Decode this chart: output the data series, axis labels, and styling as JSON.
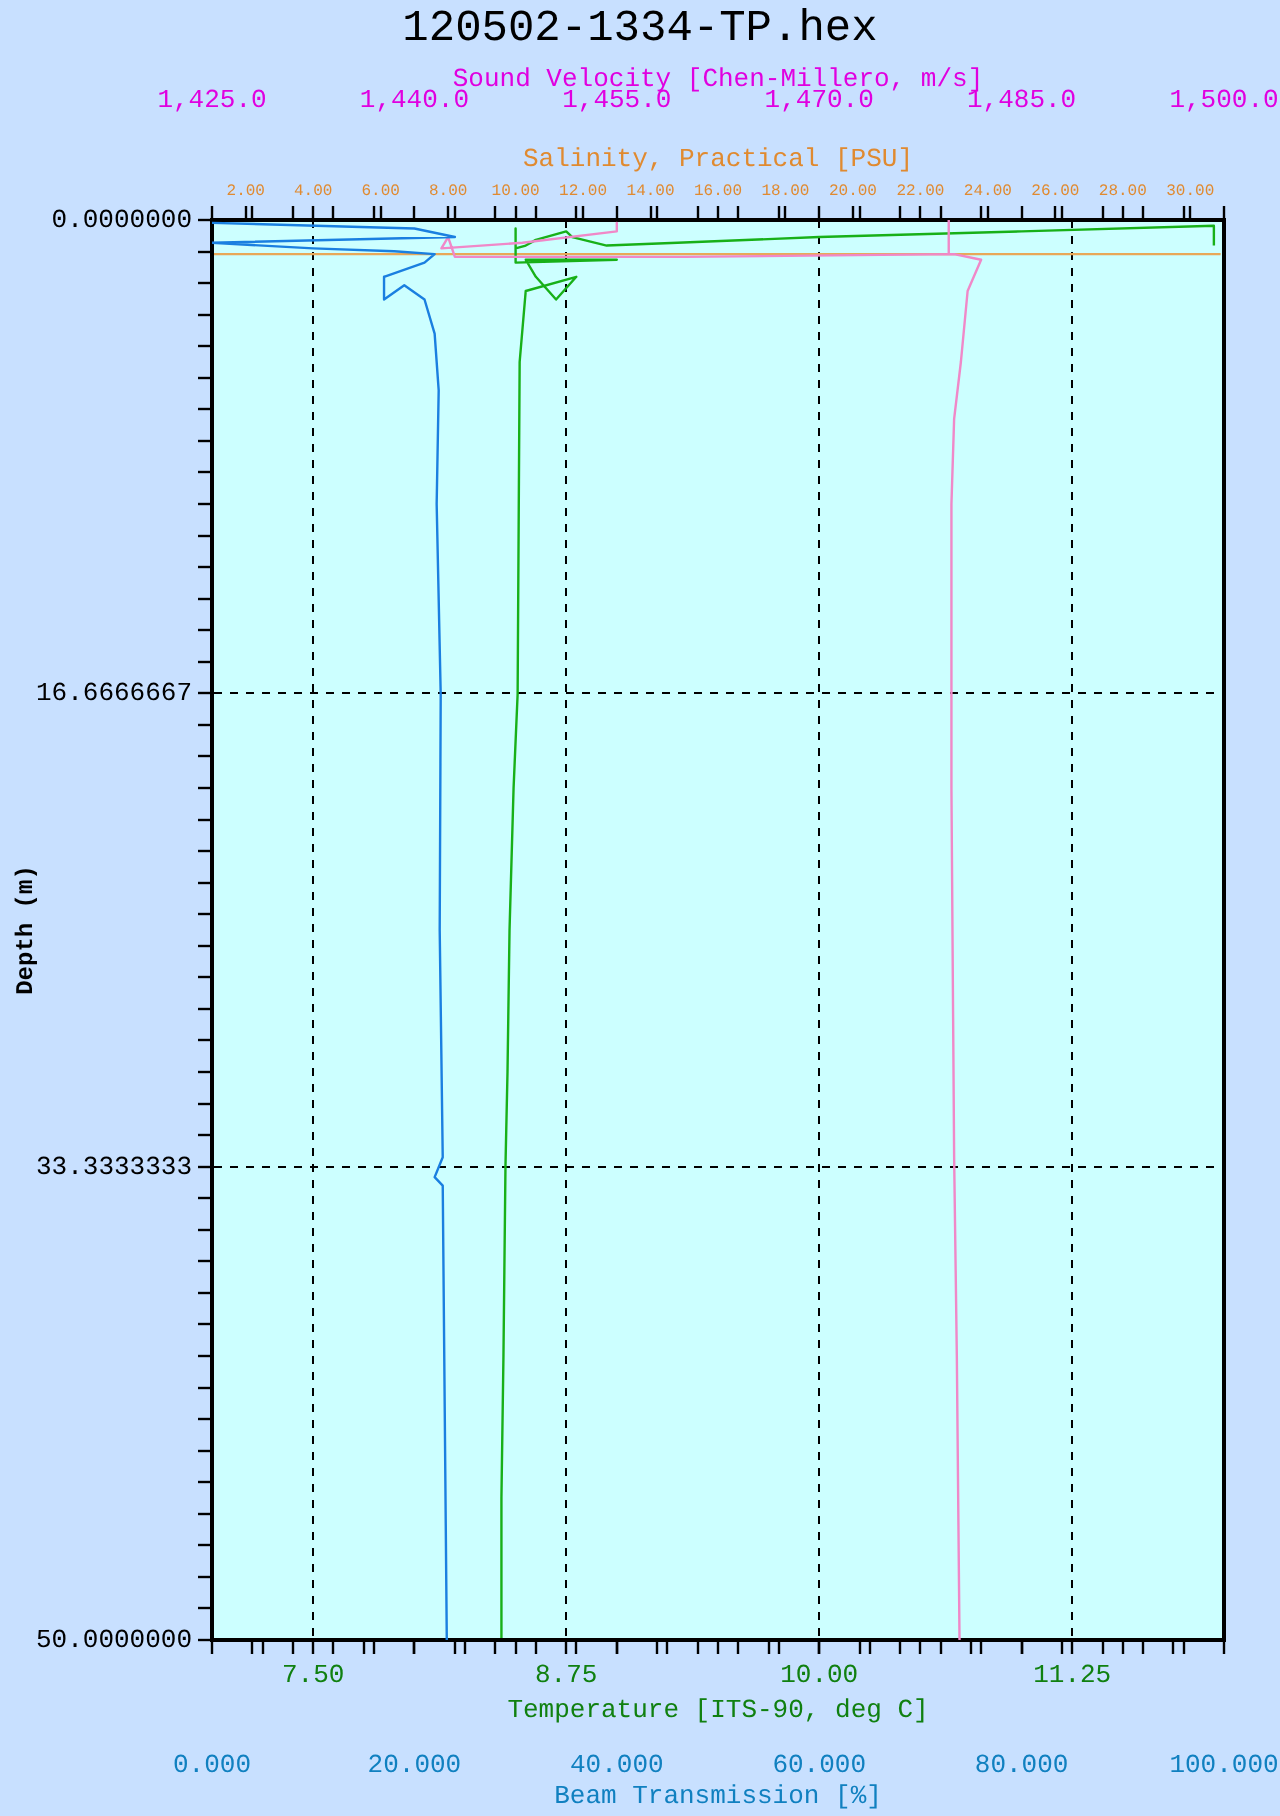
{
  "chart_data": [
    {
      "type": "line",
      "title": "120502-1334-TP.hex",
      "ylabel": "Depth (m)",
      "xlabel": "Temperature [ITS-90, deg C]",
      "x2label": "Salinity, Practical [PSU]",
      "ylim": [
        50,
        0
      ],
      "yticks": [
        {
          "value": 0,
          "label": "0.0000000"
        },
        {
          "value": 1.1111,
          "label": null
        },
        {
          "value": 2.2222,
          "label": null
        },
        {
          "value": 3.3333,
          "label": null
        },
        {
          "value": 4.4444,
          "label": null
        },
        {
          "value": 5.5556,
          "label": null
        },
        {
          "value": 6.6667,
          "label": null
        },
        {
          "value": 7.7778,
          "label": null
        },
        {
          "value": 8.8889,
          "label": null
        },
        {
          "value": 10,
          "label": null
        },
        {
          "value": 11.1111,
          "label": null
        },
        {
          "value": 12.2222,
          "label": null
        },
        {
          "value": 13.3333,
          "label": null
        },
        {
          "value": 14.4444,
          "label": null
        },
        {
          "value": 15.5556,
          "label": null
        },
        {
          "value": 16.6666667,
          "label": "16.6666667"
        },
        {
          "value": 17.7778,
          "label": null
        },
        {
          "value": 18.8889,
          "label": null
        },
        {
          "value": 20,
          "label": null
        },
        {
          "value": 21.1111,
          "label": null
        },
        {
          "value": 22.2222,
          "label": null
        },
        {
          "value": 23.3333,
          "label": null
        },
        {
          "value": 24.4444,
          "label": null
        },
        {
          "value": 25.5556,
          "label": null
        },
        {
          "value": 26.6667,
          "label": null
        },
        {
          "value": 27.7778,
          "label": null
        },
        {
          "value": 28.8889,
          "label": null
        },
        {
          "value": 30,
          "label": null
        },
        {
          "value": 31.1111,
          "label": null
        },
        {
          "value": 32.2222,
          "label": null
        },
        {
          "value": 33.3333333,
          "label": "33.3333333"
        },
        {
          "value": 34.4444,
          "label": null
        },
        {
          "value": 35.5556,
          "label": null
        },
        {
          "value": 36.6667,
          "label": null
        },
        {
          "value": 37.7778,
          "label": null
        },
        {
          "value": 38.8889,
          "label": null
        },
        {
          "value": 40,
          "label": null
        },
        {
          "value": 41.1111,
          "label": null
        },
        {
          "value": 42.2222,
          "label": null
        },
        {
          "value": 43.3333,
          "label": null
        },
        {
          "value": 44.4444,
          "label": null
        },
        {
          "value": 45.5556,
          "label": null
        },
        {
          "value": 46.6667,
          "label": null
        },
        {
          "value": 47.7778,
          "label": null
        },
        {
          "value": 48.8889,
          "label": null
        },
        {
          "value": 50,
          "label": "50.0000000"
        }
      ],
      "xlim": [
        7,
        12
      ],
      "xticks": [
        {
          "value": 7.25,
          "label": null
        },
        {
          "value": 7.5,
          "label": "7.50"
        },
        {
          "value": 7.75,
          "label": null
        },
        {
          "value": 8,
          "label": null
        },
        {
          "value": 8.25,
          "label": null
        },
        {
          "value": 8.5,
          "label": null
        },
        {
          "value": 8.75,
          "label": "8.75"
        },
        {
          "value": 9,
          "label": null
        },
        {
          "value": 9.25,
          "label": null
        },
        {
          "value": 9.5,
          "label": null
        },
        {
          "value": 9.75,
          "label": null
        },
        {
          "value": 10,
          "label": "10.00"
        },
        {
          "value": 10.25,
          "label": null
        },
        {
          "value": 10.5,
          "label": null
        },
        {
          "value": 10.75,
          "label": null
        },
        {
          "value": 11,
          "label": null
        },
        {
          "value": 11.25,
          "label": "11.25"
        },
        {
          "value": 11.5,
          "label": null
        },
        {
          "value": 11.75,
          "label": null
        }
      ],
      "x2lim": [
        1,
        31
      ],
      "x2ticks": [
        {
          "value": 2,
          "label": "2.00"
        },
        {
          "value": 4,
          "label": "4.00"
        },
        {
          "value": 6,
          "label": "6.00"
        },
        {
          "value": 8,
          "label": "8.00"
        },
        {
          "value": 10,
          "label": "10.00"
        },
        {
          "value": 12,
          "label": "12.00"
        },
        {
          "value": 14,
          "label": "14.00"
        },
        {
          "value": 16,
          "label": "16.00"
        },
        {
          "value": 18,
          "label": "18.00"
        },
        {
          "value": 20,
          "label": "20.00"
        },
        {
          "value": 22,
          "label": "22.00"
        },
        {
          "value": 24,
          "label": "24.00"
        },
        {
          "value": 26,
          "label": "26.00"
        },
        {
          "value": 28,
          "label": "28.00"
        },
        {
          "value": 30,
          "label": "30.00"
        }
      ],
      "grid": true,
      "series": [
        {
          "color": "#18b018",
          "x": [
            11.95,
            11.95,
            11,
            10,
            9.3,
            8.95,
            8.78,
            8.75,
            8.6,
            8.55,
            8.5,
            8.5,
            8.5,
            9,
            8.55,
            8.6,
            8.7,
            8.8,
            8.55,
            8.52,
            8.51,
            8.49,
            8.47,
            8.46,
            8.45,
            8.44,
            8.43,
            8.43
          ],
          "values": [
            0.9,
            0.2,
            0.4,
            0.6,
            0.8,
            0.9,
            0.6,
            0.4,
            0.7,
            0.9,
            1,
            0.3,
            1.5,
            1.4,
            1.4,
            2,
            2.8,
            2,
            2.5,
            5,
            16.7,
            20,
            25,
            30,
            33.3,
            40,
            45,
            50
          ]
        },
        {
          "axis": "x2",
          "color": "#e8a858",
          "x": [
            1,
            30.9
          ],
          "values": [
            1.2,
            1.2
          ]
        }
      ]
    },
    {
      "type": "line",
      "xlabel": "Beam Transmission [%]",
      "x2label": "Sound Velocity [Chen-Millero, m/s]",
      "ylim": [
        50,
        0
      ],
      "tick_labels": "x",
      "xlim": [
        0,
        100
      ],
      "xticks": [
        {
          "value": 0,
          "label": "0.000"
        },
        {
          "value": 4,
          "label": null
        },
        {
          "value": 8,
          "label": null
        },
        {
          "value": 12,
          "label": null
        },
        {
          "value": 16,
          "label": null
        },
        {
          "value": 20,
          "label": "20.000"
        },
        {
          "value": 24,
          "label": null
        },
        {
          "value": 28,
          "label": null
        },
        {
          "value": 32,
          "label": null
        },
        {
          "value": 36,
          "label": null
        },
        {
          "value": 40,
          "label": "40.000"
        },
        {
          "value": 44,
          "label": null
        },
        {
          "value": 48,
          "label": null
        },
        {
          "value": 52,
          "label": null
        },
        {
          "value": 56,
          "label": null
        },
        {
          "value": 60,
          "label": "60.000"
        },
        {
          "value": 64,
          "label": null
        },
        {
          "value": 68,
          "label": null
        },
        {
          "value": 72,
          "label": null
        },
        {
          "value": 76,
          "label": null
        },
        {
          "value": 80,
          "label": "80.000"
        },
        {
          "value": 84,
          "label": null
        },
        {
          "value": 88,
          "label": null
        },
        {
          "value": 92,
          "label": null
        },
        {
          "value": 96,
          "label": null
        },
        {
          "value": 100,
          "label": "100.000"
        }
      ],
      "x2lim": [
        1425,
        1500
      ],
      "x2ticks": [
        {
          "value": 1425,
          "label": "1,425.0"
        },
        {
          "value": 1428,
          "label": null
        },
        {
          "value": 1431,
          "label": null
        },
        {
          "value": 1434,
          "label": null
        },
        {
          "value": 1437,
          "label": null
        },
        {
          "value": 1440,
          "label": "1,440.0"
        },
        {
          "value": 1443,
          "label": null
        },
        {
          "value": 1446,
          "label": null
        },
        {
          "value": 1449,
          "label": null
        },
        {
          "value": 1452,
          "label": null
        },
        {
          "value": 1455,
          "label": "1,455.0"
        },
        {
          "value": 1458,
          "label": null
        },
        {
          "value": 1461,
          "label": null
        },
        {
          "value": 1464,
          "label": null
        },
        {
          "value": 1467,
          "label": null
        },
        {
          "value": 1470,
          "label": "1,470.0"
        },
        {
          "value": 1473,
          "label": null
        },
        {
          "value": 1476,
          "label": null
        },
        {
          "value": 1479,
          "label": null
        },
        {
          "value": 1482,
          "label": null
        },
        {
          "value": 1485,
          "label": "1,485.0"
        },
        {
          "value": 1488,
          "label": null
        },
        {
          "value": 1491,
          "label": null
        },
        {
          "value": 1494,
          "label": null
        },
        {
          "value": 1497,
          "label": null
        },
        {
          "value": 1500,
          "label": "1,500.0"
        }
      ],
      "series": [
        {
          "color": "#1a7fe0",
          "x": [
            0,
            20,
            24,
            0,
            10,
            18,
            22,
            21,
            17,
            17,
            19,
            21,
            22,
            22.4,
            22.2,
            22.6,
            22.5,
            22.8,
            22,
            22.8,
            23,
            23.2
          ],
          "values": [
            0.1,
            0.3,
            0.6,
            0.8,
            1,
            1.1,
            1.2,
            1.5,
            2,
            2.8,
            2.3,
            2.8,
            4,
            6,
            10,
            16.7,
            25,
            33,
            33.7,
            34,
            42,
            50
          ]
        },
        {
          "axis": "x2",
          "color": "#f088c8",
          "x": [
            1479.6,
            1479.6,
            null,
            1455,
            1455,
            1448,
            1442,
            1442.5,
            1443,
            1460,
            1480,
            1482,
            1481,
            1480.5,
            1480,
            1479.8,
            1479.8,
            1480,
            1480.2,
            1480.4
          ],
          "values": [
            0,
            1.2,
            null,
            0.1,
            0.4,
            0.8,
            1,
            0.6,
            1.3,
            1.3,
            1.2,
            1.4,
            2.5,
            5,
            7,
            10,
            20,
            33,
            40,
            50
          ]
        }
      ]
    }
  ]
}
